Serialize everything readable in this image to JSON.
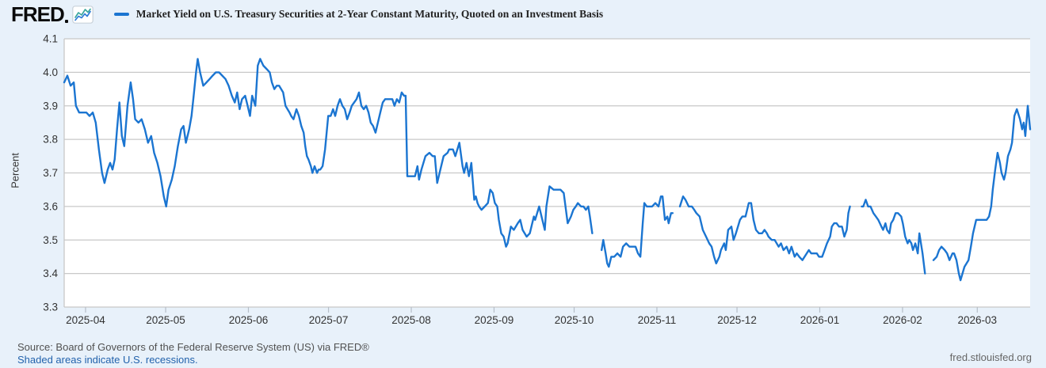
{
  "header": {
    "logo_text": "FRED",
    "logo_icon": "line-chart-icon",
    "legend": {
      "swatch_color": "#1b75d1",
      "series_label": "Market Yield on U.S. Treasury Securities at 2-Year Constant Maturity, Quoted on an Investment Basis"
    }
  },
  "footer": {
    "source_text": "Source: Board of Governors of the Federal Reserve System (US) via FRED®",
    "recession_note": "Shaded areas indicate U.S. recessions.",
    "site_url": "fred.stlouisfed.org"
  },
  "colors": {
    "background": "#e8f1fa",
    "plot_bg": "#ffffff",
    "grid": "#c8c8c8",
    "tick": "#b6bec8",
    "axis_text": "#333333",
    "line": "#1b75d1"
  },
  "chart_data": {
    "type": "line",
    "title": "Market Yield on U.S. Treasury Securities at 2-Year Constant Maturity, Quoted on an Investment Basis",
    "series_name": "Market Yield on U.S. Treasury Securities at 2-Year Constant Maturity, Quoted on an Investment Basis",
    "xlabel": "",
    "ylabel": "Percent",
    "ylim": [
      3.3,
      4.1
    ],
    "grid": true,
    "legend_position": "top-left",
    "line_color": "#1b75d1",
    "y_ticks": [
      {
        "label": "4.1",
        "v": 4.1
      },
      {
        "label": "4.0",
        "v": 4.0
      },
      {
        "label": "3.9",
        "v": 3.9
      },
      {
        "label": "3.8",
        "v": 3.8
      },
      {
        "label": "3.7",
        "v": 3.7
      },
      {
        "label": "3.6",
        "v": 3.6
      },
      {
        "label": "3.5",
        "v": 3.5
      },
      {
        "label": "3.4",
        "v": 3.4
      },
      {
        "label": "3.3",
        "v": 3.3
      }
    ],
    "x_start_date": "2025-03-24",
    "x_end_date": "2026-03-20",
    "x_total_days": 361.8,
    "x_ticks": [
      {
        "label": "2025-04",
        "day": 8
      },
      {
        "label": "2025-05",
        "day": 38
      },
      {
        "label": "2025-06",
        "day": 69
      },
      {
        "label": "2025-07",
        "day": 99
      },
      {
        "label": "2025-08",
        "day": 130
      },
      {
        "label": "2025-09",
        "day": 161
      },
      {
        "label": "2025-10",
        "day": 191
      },
      {
        "label": "2025-11",
        "day": 222
      },
      {
        "label": "2025-12",
        "day": 252
      },
      {
        "label": "2026-01",
        "day": 283
      },
      {
        "label": "2026-02",
        "day": 314
      },
      {
        "label": "2026-03",
        "day": 342
      }
    ],
    "points_format": "[days_since_x_start_date, percent]; null = missing data gap",
    "points": [
      [
        0,
        3.97
      ],
      [
        1.2,
        3.99
      ],
      [
        2.4,
        3.96
      ],
      [
        3.6,
        3.97
      ],
      [
        4.4,
        3.9
      ],
      [
        5.6,
        3.88
      ],
      [
        7.1,
        3.88
      ],
      [
        8.3,
        3.88
      ],
      [
        9.5,
        3.87
      ],
      [
        10.7,
        3.88
      ],
      [
        11.8,
        3.85
      ],
      [
        13,
        3.77
      ],
      [
        14.2,
        3.7
      ],
      [
        15.1,
        3.67
      ],
      [
        16.3,
        3.71
      ],
      [
        17.2,
        3.73
      ],
      [
        18.1,
        3.71
      ],
      [
        18.9,
        3.74
      ],
      [
        19.8,
        3.83
      ],
      [
        20.7,
        3.91
      ],
      [
        21.6,
        3.81
      ],
      [
        22.5,
        3.78
      ],
      [
        23.7,
        3.9
      ],
      [
        24.9,
        3.97
      ],
      [
        25.8,
        3.92
      ],
      [
        26.6,
        3.86
      ],
      [
        27.8,
        3.85
      ],
      [
        29,
        3.86
      ],
      [
        30.2,
        3.83
      ],
      [
        31.4,
        3.79
      ],
      [
        32.6,
        3.81
      ],
      [
        33.7,
        3.76
      ],
      [
        34.9,
        3.73
      ],
      [
        36.1,
        3.69
      ],
      [
        37.3,
        3.63
      ],
      [
        38.2,
        3.6
      ],
      [
        39.1,
        3.65
      ],
      [
        40.3,
        3.68
      ],
      [
        41.4,
        3.72
      ],
      [
        42.6,
        3.78
      ],
      [
        43.8,
        3.83
      ],
      [
        44.7,
        3.84
      ],
      [
        45.6,
        3.79
      ],
      [
        46.8,
        3.83
      ],
      [
        47.7,
        3.87
      ],
      [
        48.5,
        3.93
      ],
      [
        49.4,
        4.0
      ],
      [
        50,
        4.04
      ],
      [
        50.9,
        4.0
      ],
      [
        52.1,
        3.96
      ],
      [
        53.3,
        3.97
      ],
      [
        54.5,
        3.98
      ],
      [
        55.6,
        3.99
      ],
      [
        56.8,
        4.0
      ],
      [
        58,
        4.0
      ],
      [
        59.2,
        3.99
      ],
      [
        60.4,
        3.98
      ],
      [
        61.6,
        3.96
      ],
      [
        62.8,
        3.93
      ],
      [
        63.9,
        3.91
      ],
      [
        64.8,
        3.94
      ],
      [
        65.7,
        3.89
      ],
      [
        66.6,
        3.92
      ],
      [
        67.8,
        3.93
      ],
      [
        68.7,
        3.9
      ],
      [
        69.6,
        3.87
      ],
      [
        70.4,
        3.93
      ],
      [
        71.6,
        3.9
      ],
      [
        72.5,
        4.02
      ],
      [
        73.4,
        4.04
      ],
      [
        74.6,
        4.02
      ],
      [
        75.8,
        4.01
      ],
      [
        77,
        4.0
      ],
      [
        77.8,
        3.97
      ],
      [
        78.7,
        3.95
      ],
      [
        79.6,
        3.96
      ],
      [
        80.5,
        3.96
      ],
      [
        82,
        3.94
      ],
      [
        82.9,
        3.9
      ],
      [
        84.4,
        3.88
      ],
      [
        85,
        3.87
      ],
      [
        85.9,
        3.86
      ],
      [
        87,
        3.89
      ],
      [
        87.9,
        3.87
      ],
      [
        88.8,
        3.84
      ],
      [
        89.7,
        3.82
      ],
      [
        90.3,
        3.78
      ],
      [
        90.9,
        3.75
      ],
      [
        91.5,
        3.74
      ],
      [
        92.4,
        3.72
      ],
      [
        93,
        3.7
      ],
      [
        93.8,
        3.72
      ],
      [
        94.7,
        3.7
      ],
      [
        95.3,
        3.71
      ],
      [
        95.9,
        3.71
      ],
      [
        96.8,
        3.72
      ],
      [
        97.7,
        3.77
      ],
      [
        98.9,
        3.87
      ],
      [
        99.8,
        3.87
      ],
      [
        100.7,
        3.89
      ],
      [
        101.5,
        3.87
      ],
      [
        102.4,
        3.9
      ],
      [
        103.3,
        3.92
      ],
      [
        104.2,
        3.9
      ],
      [
        105.1,
        3.89
      ],
      [
        106,
        3.86
      ],
      [
        106.9,
        3.88
      ],
      [
        107.7,
        3.9
      ],
      [
        108.6,
        3.91
      ],
      [
        109.5,
        3.92
      ],
      [
        110.4,
        3.94
      ],
      [
        111.3,
        3.9
      ],
      [
        112.2,
        3.89
      ],
      [
        113.1,
        3.9
      ],
      [
        114,
        3.88
      ],
      [
        114.8,
        3.85
      ],
      [
        115.7,
        3.84
      ],
      [
        116.6,
        3.82
      ],
      [
        117.5,
        3.85
      ],
      [
        118.4,
        3.88
      ],
      [
        119.3,
        3.91
      ],
      [
        120.2,
        3.92
      ],
      [
        121.1,
        3.92
      ],
      [
        122,
        3.92
      ],
      [
        122.9,
        3.92
      ],
      [
        123.7,
        3.9
      ],
      [
        124.6,
        3.92
      ],
      [
        125.5,
        3.91
      ],
      [
        126.4,
        3.94
      ],
      [
        127.3,
        3.93
      ],
      [
        127.9,
        3.93
      ],
      [
        128.5,
        3.69
      ],
      [
        129.4,
        3.69
      ],
      [
        130.5,
        3.69
      ],
      [
        131.4,
        3.69
      ],
      [
        132.3,
        3.72
      ],
      [
        132.9,
        3.68
      ],
      [
        133.8,
        3.71
      ],
      [
        135.3,
        3.75
      ],
      [
        136.8,
        3.76
      ],
      [
        138,
        3.75
      ],
      [
        138.8,
        3.75
      ],
      [
        139.7,
        3.67
      ],
      [
        140.6,
        3.7
      ],
      [
        142.1,
        3.75
      ],
      [
        143.6,
        3.76
      ],
      [
        144.2,
        3.77
      ],
      [
        145.6,
        3.77
      ],
      [
        146.5,
        3.75
      ],
      [
        148,
        3.79
      ],
      [
        149.2,
        3.72
      ],
      [
        149.8,
        3.7
      ],
      [
        150.7,
        3.73
      ],
      [
        151.6,
        3.69
      ],
      [
        152.5,
        3.73
      ],
      [
        153.6,
        3.62
      ],
      [
        154.2,
        3.63
      ],
      [
        154.8,
        3.61
      ],
      [
        155.4,
        3.6
      ],
      [
        156.3,
        3.59
      ],
      [
        157.5,
        3.6
      ],
      [
        158.7,
        3.61
      ],
      [
        159.6,
        3.65
      ],
      [
        160.5,
        3.64
      ],
      [
        161.3,
        3.61
      ],
      [
        162.2,
        3.6
      ],
      [
        162.8,
        3.56
      ],
      [
        163.7,
        3.52
      ],
      [
        164.6,
        3.51
      ],
      [
        165.5,
        3.48
      ],
      [
        166.1,
        3.49
      ],
      [
        167.3,
        3.54
      ],
      [
        168.4,
        3.53
      ],
      [
        169.9,
        3.55
      ],
      [
        170.8,
        3.56
      ],
      [
        171.7,
        3.53
      ],
      [
        173.2,
        3.51
      ],
      [
        174.4,
        3.52
      ],
      [
        175.9,
        3.57
      ],
      [
        176.4,
        3.56
      ],
      [
        177.9,
        3.6
      ],
      [
        178.8,
        3.57
      ],
      [
        180,
        3.53
      ],
      [
        180.6,
        3.6
      ],
      [
        181.8,
        3.66
      ],
      [
        183.3,
        3.65
      ],
      [
        184.7,
        3.65
      ],
      [
        185.9,
        3.65
      ],
      [
        187.1,
        3.64
      ],
      [
        188.6,
        3.55
      ],
      [
        189.8,
        3.57
      ],
      [
        190.7,
        3.59
      ],
      [
        191.6,
        3.6
      ],
      [
        192.4,
        3.61
      ],
      [
        193.6,
        3.6
      ],
      [
        194.5,
        3.6
      ],
      [
        195.4,
        3.59
      ],
      [
        196.3,
        3.6
      ],
      [
        196.9,
        3.57
      ],
      [
        197.8,
        3.52
      ],
      [
        199.5,
        null
      ],
      [
        201.3,
        3.47
      ],
      [
        201.9,
        3.5
      ],
      [
        202.8,
        3.46
      ],
      [
        203.4,
        3.43
      ],
      [
        204,
        3.42
      ],
      [
        204.9,
        3.45
      ],
      [
        206,
        3.45
      ],
      [
        207.2,
        3.46
      ],
      [
        208.4,
        3.45
      ],
      [
        209.3,
        3.48
      ],
      [
        210.5,
        3.49
      ],
      [
        211.7,
        3.48
      ],
      [
        212.9,
        3.48
      ],
      [
        214,
        3.48
      ],
      [
        214.9,
        3.46
      ],
      [
        215.8,
        3.45
      ],
      [
        216.7,
        3.55
      ],
      [
        217.3,
        3.61
      ],
      [
        218.2,
        3.6
      ],
      [
        219.1,
        3.6
      ],
      [
        220.2,
        3.6
      ],
      [
        221.4,
        3.61
      ],
      [
        222.6,
        3.6
      ],
      [
        223.5,
        3.63
      ],
      [
        224.1,
        3.63
      ],
      [
        225,
        3.56
      ],
      [
        225.9,
        3.57
      ],
      [
        226.4,
        3.55
      ],
      [
        227.3,
        3.58
      ],
      [
        227.9,
        3.58
      ],
      [
        229,
        null
      ],
      [
        230.6,
        3.6
      ],
      [
        231.8,
        3.63
      ],
      [
        232.7,
        3.62
      ],
      [
        233.9,
        3.6
      ],
      [
        235.1,
        3.6
      ],
      [
        236,
        3.59
      ],
      [
        236.8,
        3.58
      ],
      [
        238,
        3.57
      ],
      [
        239.2,
        3.53
      ],
      [
        240.4,
        3.51
      ],
      [
        241.6,
        3.49
      ],
      [
        242.5,
        3.48
      ],
      [
        243.4,
        3.45
      ],
      [
        244.2,
        3.43
      ],
      [
        245.4,
        3.45
      ],
      [
        246,
        3.47
      ],
      [
        247.2,
        3.49
      ],
      [
        247.8,
        3.47
      ],
      [
        248.7,
        3.53
      ],
      [
        249.9,
        3.54
      ],
      [
        250.7,
        3.5
      ],
      [
        251.6,
        3.52
      ],
      [
        253.1,
        3.56
      ],
      [
        254,
        3.57
      ],
      [
        255.2,
        3.57
      ],
      [
        256.4,
        3.61
      ],
      [
        257.3,
        3.61
      ],
      [
        258.2,
        3.56
      ],
      [
        259.1,
        3.53
      ],
      [
        260.2,
        3.52
      ],
      [
        261.4,
        3.52
      ],
      [
        262.3,
        3.53
      ],
      [
        263.2,
        3.52
      ],
      [
        263.8,
        3.51
      ],
      [
        265,
        3.5
      ],
      [
        266.1,
        3.5
      ],
      [
        267.6,
        3.48
      ],
      [
        268.5,
        3.49
      ],
      [
        269.4,
        3.47
      ],
      [
        270.6,
        3.48
      ],
      [
        271.5,
        3.46
      ],
      [
        272.4,
        3.48
      ],
      [
        273.6,
        3.45
      ],
      [
        274.4,
        3.46
      ],
      [
        275.3,
        3.45
      ],
      [
        276.5,
        3.44
      ],
      [
        278.9,
        3.47
      ],
      [
        279.8,
        3.46
      ],
      [
        281,
        3.46
      ],
      [
        281.9,
        3.46
      ],
      [
        282.7,
        3.45
      ],
      [
        283.9,
        3.45
      ],
      [
        284.8,
        3.47
      ],
      [
        285.7,
        3.49
      ],
      [
        286.9,
        3.51
      ],
      [
        287.5,
        3.54
      ],
      [
        288.4,
        3.55
      ],
      [
        289.3,
        3.55
      ],
      [
        290.2,
        3.54
      ],
      [
        291.3,
        3.54
      ],
      [
        292.2,
        3.51
      ],
      [
        293.1,
        3.53
      ],
      [
        293.7,
        3.58
      ],
      [
        294.3,
        3.6
      ],
      [
        296,
        null
      ],
      [
        298.7,
        3.6
      ],
      [
        299.3,
        3.6
      ],
      [
        300.2,
        3.62
      ],
      [
        301.1,
        3.6
      ],
      [
        302,
        3.6
      ],
      [
        303.1,
        3.58
      ],
      [
        304,
        3.57
      ],
      [
        304.9,
        3.56
      ],
      [
        306.1,
        3.54
      ],
      [
        306.7,
        3.53
      ],
      [
        307.6,
        3.55
      ],
      [
        308.2,
        3.53
      ],
      [
        309.1,
        3.52
      ],
      [
        309.7,
        3.55
      ],
      [
        310.5,
        3.56
      ],
      [
        311.4,
        3.58
      ],
      [
        312.3,
        3.58
      ],
      [
        313.5,
        3.57
      ],
      [
        314.1,
        3.55
      ],
      [
        315,
        3.51
      ],
      [
        315.9,
        3.49
      ],
      [
        316.5,
        3.5
      ],
      [
        317.3,
        3.49
      ],
      [
        317.9,
        3.47
      ],
      [
        318.8,
        3.49
      ],
      [
        319.7,
        3.46
      ],
      [
        320.3,
        3.52
      ],
      [
        320.9,
        3.49
      ],
      [
        321.5,
        3.46
      ],
      [
        322.4,
        3.4
      ],
      [
        324,
        null
      ],
      [
        325.6,
        3.44
      ],
      [
        326.8,
        3.45
      ],
      [
        327.7,
        3.47
      ],
      [
        328.6,
        3.48
      ],
      [
        329.8,
        3.47
      ],
      [
        330.7,
        3.46
      ],
      [
        331.6,
        3.44
      ],
      [
        332.7,
        3.46
      ],
      [
        333.3,
        3.46
      ],
      [
        334.2,
        3.44
      ],
      [
        335.1,
        3.4
      ],
      [
        335.7,
        3.38
      ],
      [
        337.2,
        3.42
      ],
      [
        338.7,
        3.44
      ],
      [
        339.6,
        3.48
      ],
      [
        340.4,
        3.52
      ],
      [
        341.6,
        3.56
      ],
      [
        342.5,
        3.56
      ],
      [
        343.4,
        3.56
      ],
      [
        344.6,
        3.56
      ],
      [
        345.5,
        3.56
      ],
      [
        346.4,
        3.57
      ],
      [
        347.2,
        3.6
      ],
      [
        347.8,
        3.65
      ],
      [
        348.7,
        3.71
      ],
      [
        349.6,
        3.76
      ],
      [
        350.5,
        3.73
      ],
      [
        351.1,
        3.7
      ],
      [
        352,
        3.68
      ],
      [
        352.6,
        3.7
      ],
      [
        353.5,
        3.75
      ],
      [
        354.4,
        3.77
      ],
      [
        355,
        3.79
      ],
      [
        355.9,
        3.87
      ],
      [
        356.8,
        3.89
      ],
      [
        358,
        3.86
      ],
      [
        358.8,
        3.83
      ],
      [
        359.4,
        3.85
      ],
      [
        360,
        3.81
      ],
      [
        360.9,
        3.9
      ],
      [
        361.8,
        3.83
      ]
    ]
  }
}
